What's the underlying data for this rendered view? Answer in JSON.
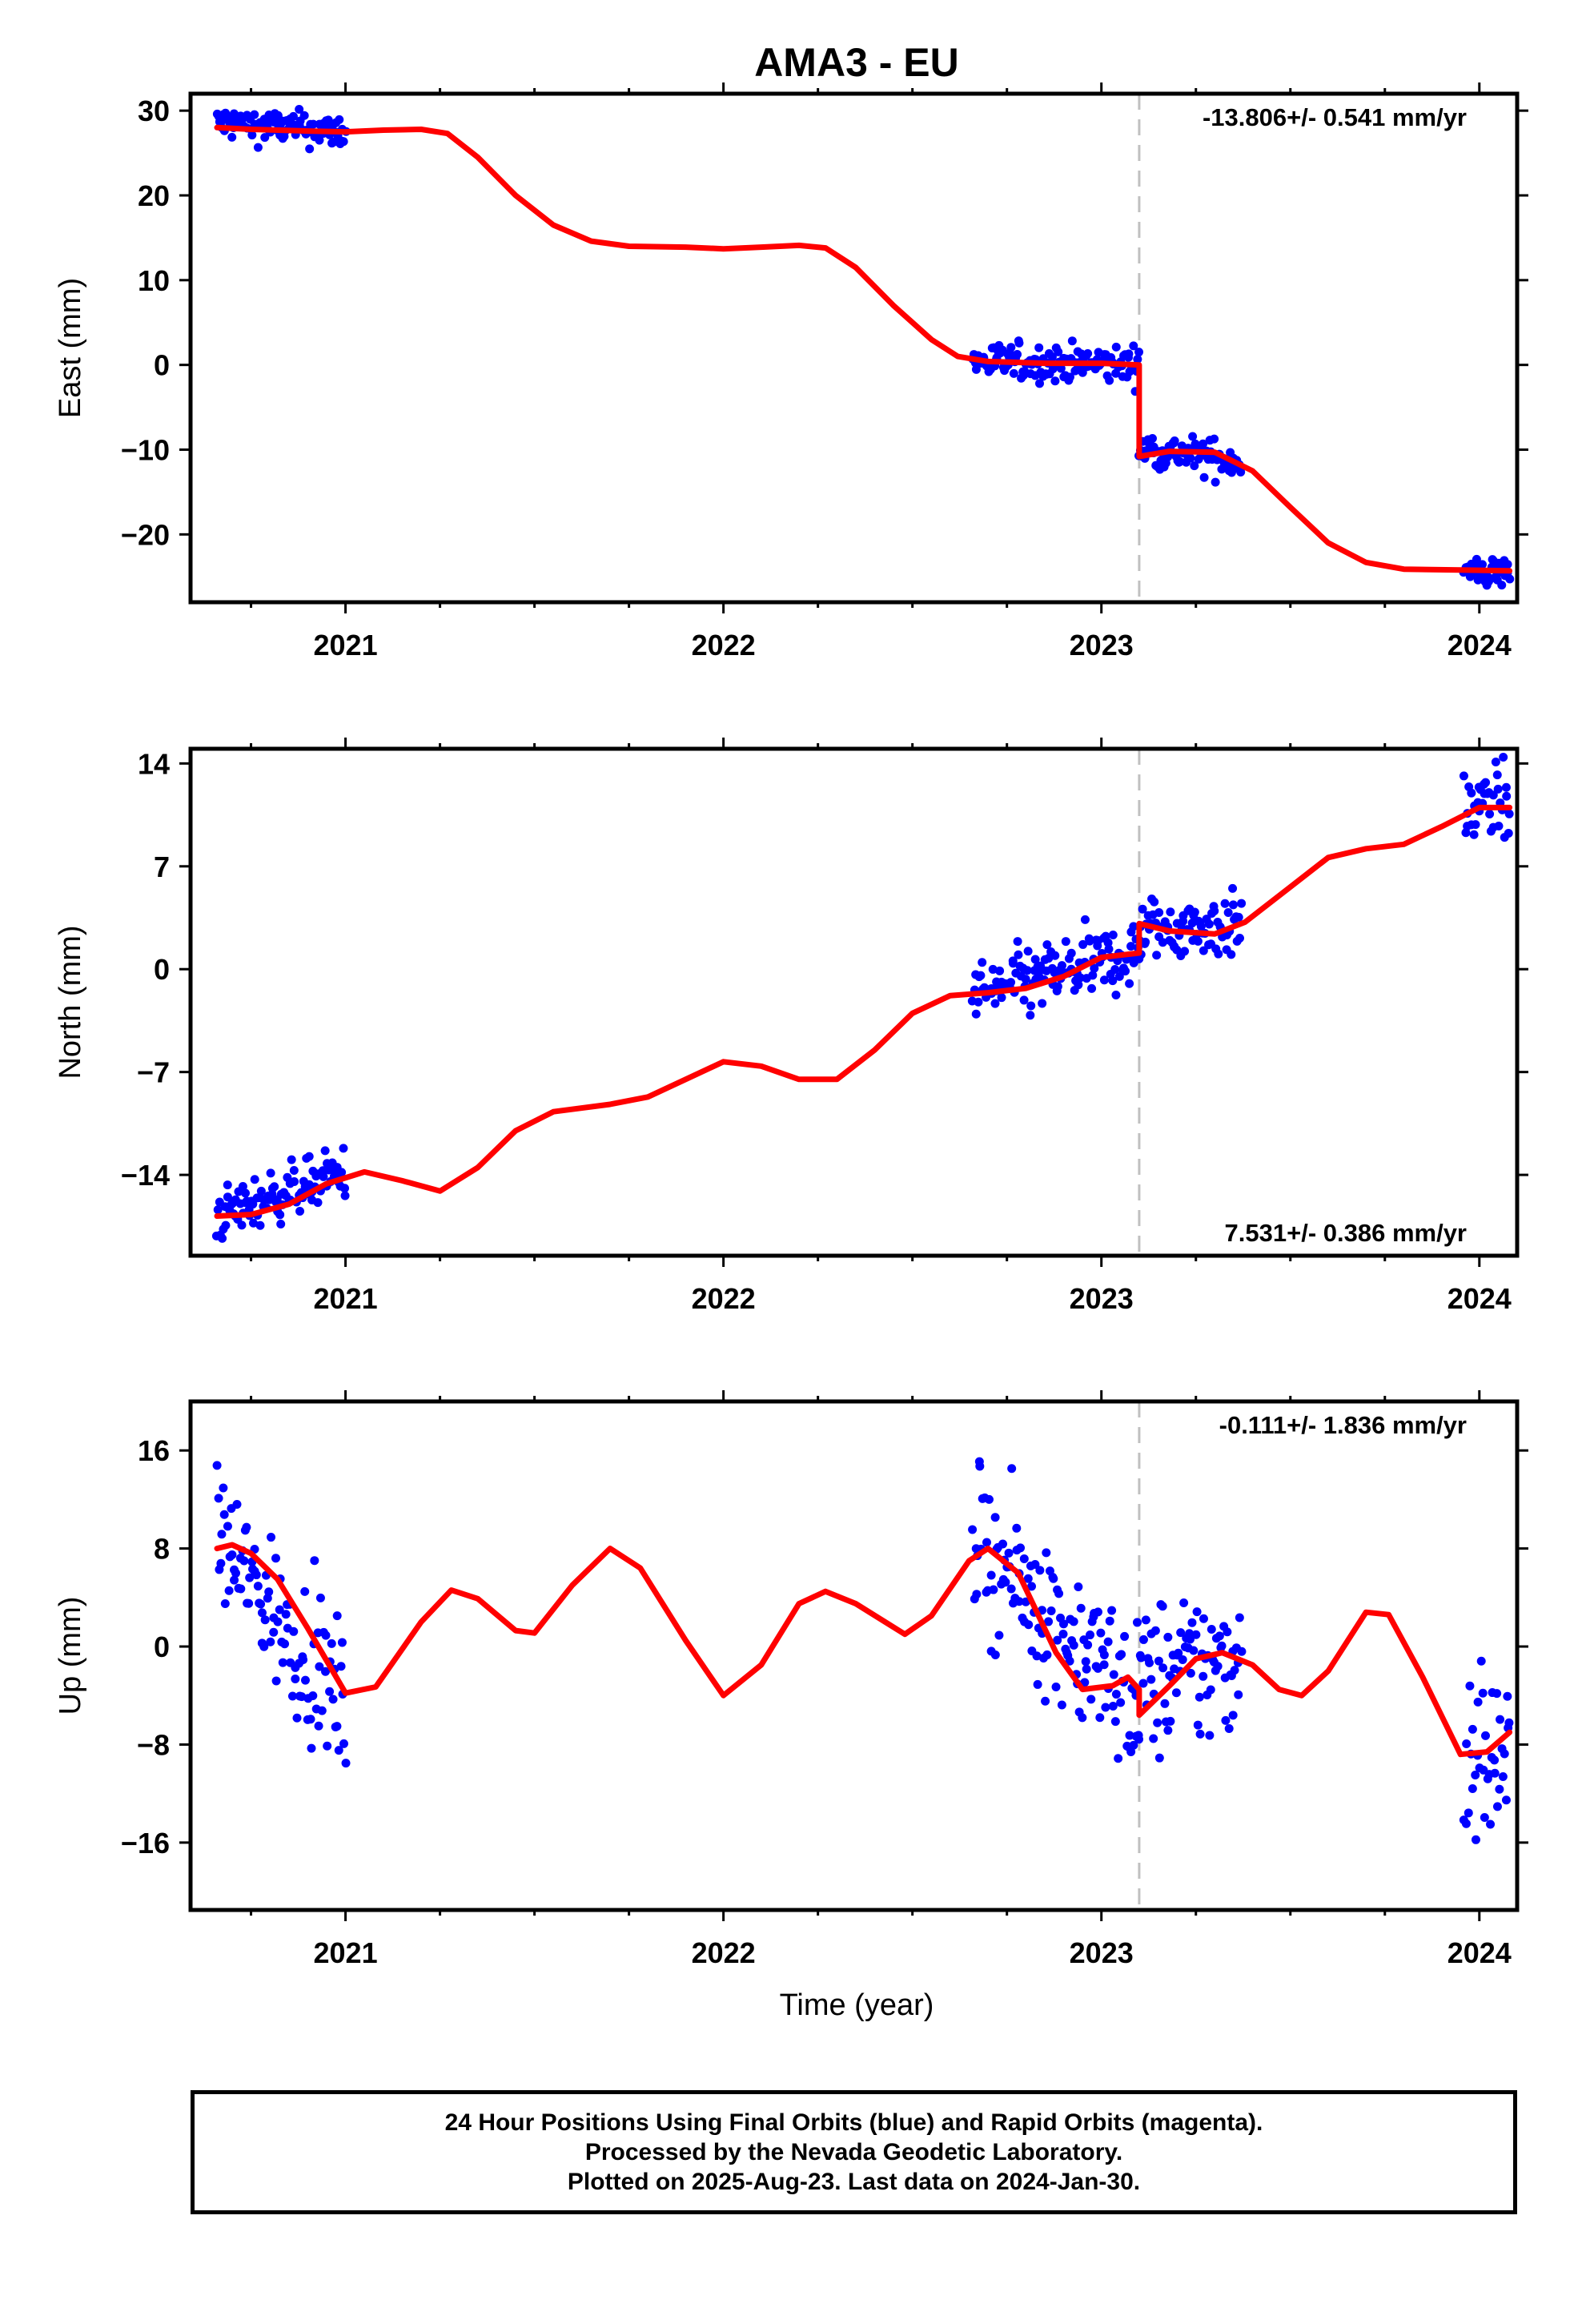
{
  "chart_data": {
    "type": "scatter",
    "title": "AMA3 - EU",
    "xlabel": "Time (year)",
    "x_tick_labels": [
      "2021",
      "2022",
      "2023",
      "2024"
    ],
    "xlim": [
      2020.59,
      2024.1
    ],
    "step_epoch": 2023.1,
    "colors": {
      "data": "#0000ff",
      "model": "#ff0000",
      "step_line": "#c0c0c0"
    },
    "panels": [
      {
        "ylabel": "East (mm)",
        "ylim": [
          -28,
          32
        ],
        "y_ticks": [
          -20,
          -10,
          0,
          10,
          20,
          30
        ],
        "y_tick_labels": [
          "−20",
          "−10",
          "0",
          "10",
          "20",
          "30"
        ],
        "rate": "-13.806+/- 0.541 mm/yr",
        "rate_position": "top-right",
        "model_curve": [
          [
            2020.66,
            28
          ],
          [
            2020.75,
            27.8
          ],
          [
            2020.9,
            27.6
          ],
          [
            2021.0,
            27.5
          ],
          [
            2021.1,
            27.7
          ],
          [
            2021.2,
            27.8
          ],
          [
            2021.27,
            27.3
          ],
          [
            2021.35,
            24.5
          ],
          [
            2021.45,
            20
          ],
          [
            2021.55,
            16.5
          ],
          [
            2021.65,
            14.6
          ],
          [
            2021.75,
            14.0
          ],
          [
            2021.9,
            13.9
          ],
          [
            2022.0,
            13.7
          ],
          [
            2022.1,
            13.9
          ],
          [
            2022.2,
            14.1
          ],
          [
            2022.27,
            13.8
          ],
          [
            2022.35,
            11.5
          ],
          [
            2022.45,
            7
          ],
          [
            2022.55,
            3
          ],
          [
            2022.62,
            1.0
          ],
          [
            2022.7,
            0.4
          ],
          [
            2022.85,
            0.2
          ],
          [
            2023.0,
            0.2
          ],
          [
            2023.1,
            0.0
          ],
          [
            2023.1,
            -10.8
          ],
          [
            2023.18,
            -10.2
          ],
          [
            2023.3,
            -10.3
          ],
          [
            2023.4,
            -12.5
          ],
          [
            2023.5,
            -16.8
          ],
          [
            2023.6,
            -21
          ],
          [
            2023.7,
            -23.3
          ],
          [
            2023.8,
            -24.1
          ],
          [
            2023.95,
            -24.2
          ],
          [
            2024.08,
            -24.3
          ]
        ],
        "data_segments": [
          {
            "start": 2020.66,
            "end": 2021.0,
            "mean": [
              28.6,
              27.5
            ],
            "spread": 1.0
          },
          {
            "start": 2022.66,
            "end": 2023.1,
            "mean": [
              0.4,
              0.0
            ],
            "spread": 1.1
          },
          {
            "start": 2023.1,
            "end": 2023.37,
            "mean": [
              -9.8,
              -11.4
            ],
            "spread": 1.1
          },
          {
            "start": 2023.96,
            "end": 2024.08,
            "mean": [
              -24.6,
              -24.6
            ],
            "spread": 1.0
          }
        ]
      },
      {
        "ylabel": "North (mm)",
        "ylim": [
          -19.5,
          15
        ],
        "y_ticks": [
          -14,
          -7,
          0,
          7,
          14
        ],
        "y_tick_labels": [
          "−14",
          "−7",
          "0",
          "7",
          "14"
        ],
        "rate": "7.531+/- 0.386 mm/yr",
        "rate_position": "bottom-right",
        "model_curve": [
          [
            2020.66,
            -16.8
          ],
          [
            2020.75,
            -16.7
          ],
          [
            2020.85,
            -16.0
          ],
          [
            2020.95,
            -14.6
          ],
          [
            2021.05,
            -13.8
          ],
          [
            2021.15,
            -14.4
          ],
          [
            2021.25,
            -15.1
          ],
          [
            2021.35,
            -13.5
          ],
          [
            2021.45,
            -11
          ],
          [
            2021.55,
            -9.7
          ],
          [
            2021.7,
            -9.2
          ],
          [
            2021.8,
            -8.7
          ],
          [
            2021.9,
            -7.5
          ],
          [
            2022.0,
            -6.3
          ],
          [
            2022.1,
            -6.6
          ],
          [
            2022.2,
            -7.5
          ],
          [
            2022.3,
            -7.5
          ],
          [
            2022.4,
            -5.5
          ],
          [
            2022.5,
            -3
          ],
          [
            2022.6,
            -1.8
          ],
          [
            2022.7,
            -1.6
          ],
          [
            2022.8,
            -1.3
          ],
          [
            2022.9,
            -0.5
          ],
          [
            2023.0,
            0.8
          ],
          [
            2023.1,
            1.1
          ],
          [
            2023.1,
            3.1
          ],
          [
            2023.18,
            2.6
          ],
          [
            2023.3,
            2.4
          ],
          [
            2023.38,
            3.2
          ],
          [
            2023.5,
            5.6
          ],
          [
            2023.6,
            7.6
          ],
          [
            2023.7,
            8.2
          ],
          [
            2023.8,
            8.5
          ],
          [
            2023.9,
            9.7
          ],
          [
            2024.0,
            11.0
          ],
          [
            2024.08,
            11.0
          ]
        ],
        "data_segments": [
          {
            "start": 2020.66,
            "end": 2021.0,
            "mean": [
              -16.8,
              -13.8
            ],
            "spread": 0.9
          },
          {
            "start": 2022.66,
            "end": 2023.1,
            "mean": [
              -1.8,
              1.1
            ],
            "spread": 1.2
          },
          {
            "start": 2023.1,
            "end": 2023.37,
            "mean": [
              2.7,
              3.0
            ],
            "spread": 1.1
          },
          {
            "start": 2023.96,
            "end": 2024.08,
            "mean": [
              10.8,
              11.6
            ],
            "spread": 1.3
          }
        ]
      },
      {
        "ylabel": "Up (mm)",
        "ylim": [
          -21.5,
          20
        ],
        "y_ticks": [
          -16,
          -8,
          0,
          8,
          16
        ],
        "y_tick_labels": [
          "−16",
          "−8",
          "0",
          "8",
          "16"
        ],
        "rate": "-0.111+/- 1.836 mm/yr",
        "rate_position": "top-right",
        "model_curve": [
          [
            2020.66,
            8.0
          ],
          [
            2020.7,
            8.3
          ],
          [
            2020.75,
            7.6
          ],
          [
            2020.82,
            5.5
          ],
          [
            2020.9,
            1.5
          ],
          [
            2021.0,
            -3.8
          ],
          [
            2021.08,
            -3.3
          ],
          [
            2021.2,
            2.0
          ],
          [
            2021.28,
            4.6
          ],
          [
            2021.35,
            3.9
          ],
          [
            2021.45,
            1.3
          ],
          [
            2021.5,
            1.1
          ],
          [
            2021.6,
            5.0
          ],
          [
            2021.7,
            8.0
          ],
          [
            2021.78,
            6.4
          ],
          [
            2021.9,
            0.5
          ],
          [
            2022.0,
            -4.0
          ],
          [
            2022.1,
            -1.5
          ],
          [
            2022.2,
            3.5
          ],
          [
            2022.27,
            4.5
          ],
          [
            2022.35,
            3.5
          ],
          [
            2022.48,
            1.0
          ],
          [
            2022.55,
            2.5
          ],
          [
            2022.65,
            7.0
          ],
          [
            2022.7,
            8.0
          ],
          [
            2022.78,
            6.0
          ],
          [
            2022.88,
            -0.5
          ],
          [
            2022.95,
            -3.5
          ],
          [
            2023.03,
            -3.2
          ],
          [
            2023.07,
            -2.5
          ],
          [
            2023.1,
            -3.5
          ],
          [
            2023.1,
            -5.6
          ],
          [
            2023.18,
            -3.2
          ],
          [
            2023.25,
            -1.0
          ],
          [
            2023.32,
            -0.5
          ],
          [
            2023.4,
            -1.5
          ],
          [
            2023.47,
            -3.5
          ],
          [
            2023.53,
            -4.0
          ],
          [
            2023.6,
            -2.0
          ],
          [
            2023.7,
            2.8
          ],
          [
            2023.76,
            2.6
          ],
          [
            2023.85,
            -2.5
          ],
          [
            2023.95,
            -8.8
          ],
          [
            2024.02,
            -8.6
          ],
          [
            2024.08,
            -7.0
          ]
        ],
        "data_segments": [
          {
            "start": 2020.66,
            "end": 2021.0,
            "mean": [
              9.0,
              -5.0
            ],
            "spread": 3.0
          },
          {
            "start": 2022.66,
            "end": 2023.1,
            "mean": [
              9.0,
              -5.0
            ],
            "spread": 3.2
          },
          {
            "start": 2023.1,
            "end": 2023.37,
            "mean": [
              -3.0,
              -1.0
            ],
            "spread": 3.3
          },
          {
            "start": 2023.96,
            "end": 2024.08,
            "mean": [
              -8.0,
              -9.5
            ],
            "spread": 4.0
          }
        ]
      }
    ]
  },
  "footer": {
    "line1": "24 Hour Positions Using Final Orbits (blue) and Rapid Orbits (magenta).",
    "line2": "Processed by the Nevada Geodetic Laboratory.",
    "line3": "Plotted on 2025-Aug-23. Last data on 2024-Jan-30."
  }
}
